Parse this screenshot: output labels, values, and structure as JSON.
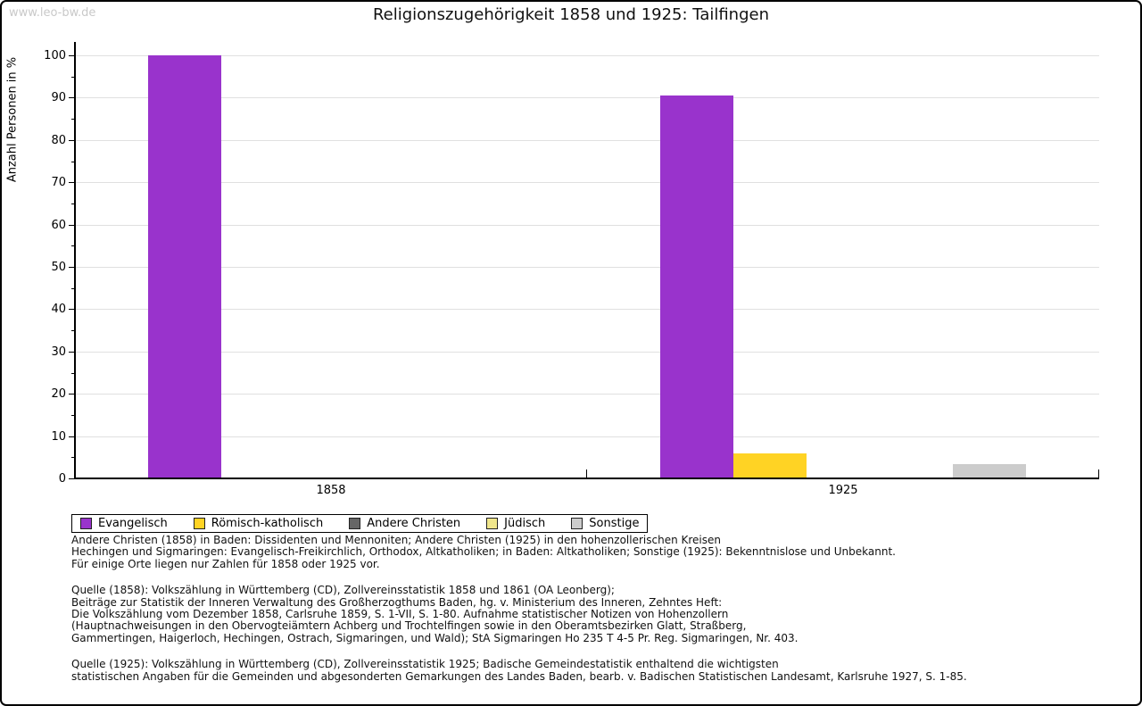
{
  "watermark": "www.leo-bw.de",
  "chart_data": {
    "type": "bar",
    "title": "Religionszugehörigkeit 1858 und 1925: Tailfingen",
    "xlabel": "",
    "ylabel": "Anzahl Personen in %",
    "ylim": [
      0,
      100
    ],
    "ytick_interval": 10,
    "minor_tick_interval": 5,
    "yticks": [
      0,
      10,
      20,
      30,
      40,
      50,
      60,
      70,
      80,
      90,
      100
    ],
    "grid": true,
    "legend_position": "bottom-left",
    "categories": [
      "1858",
      "1925"
    ],
    "series": [
      {
        "name": "Evangelisch",
        "color": "#9933cc",
        "values": [
          100,
          90.6
        ]
      },
      {
        "name": "Römisch-katholisch",
        "color": "#ffd324",
        "values": [
          0,
          5.9
        ]
      },
      {
        "name": "Andere Christen",
        "color": "#666666",
        "values": [
          0,
          0
        ]
      },
      {
        "name": "Jüdisch",
        "color": "#f0e68c",
        "values": [
          0,
          0
        ]
      },
      {
        "name": "Sonstige",
        "color": "#cccccc",
        "values": [
          0,
          3.3
        ]
      }
    ]
  },
  "footnotes": [
    "Andere Christen (1858) in Baden: Dissidenten und Mennoniten; Andere Christen (1925) in den hohenzollerischen Kreisen",
    "Hechingen und Sigmaringen: Evangelisch-Freikirchlich, Orthodox, Altkatholiken; in Baden: Altkatholiken; Sonstige (1925): Bekenntnislose und Unbekannt.",
    "Für einige Orte liegen nur Zahlen für 1858 oder 1925 vor.",
    "",
    "Quelle (1858): Volkszählung in Württemberg (CD), Zollvereinsstatistik 1858 und 1861 (OA Leonberg);",
    "Beiträge zur Statistik der Inneren Verwaltung des Großherzogthums Baden, hg. v. Ministerium des Inneren, Zehntes Heft:",
    "Die Volkszählung vom Dezember 1858, Carlsruhe 1859, S. 1-VII, S. 1-80. Aufnahme statistischer Notizen von Hohenzollern",
    "(Hauptnachweisungen in den Obervogteiämtern Achberg und Trochtelfingen sowie in den Oberamtsbezirken Glatt, Straßberg,",
    "Gammertingen, Haigerloch, Hechingen, Ostrach, Sigmaringen, und Wald); StA Sigmaringen Ho 235 T 4-5 Pr. Reg. Sigmaringen, Nr. 403.",
    "",
    "Quelle (1925): Volkszählung in Württemberg (CD), Zollvereinsstatistik 1925; Badische Gemeindestatistik enthaltend die wichtigsten",
    "statistischen Angaben für die Gemeinden und abgesonderten Gemarkungen des Landes Baden, bearb. v. Badischen Statistischen Landesamt, Karlsruhe 1927, S. 1-85."
  ]
}
